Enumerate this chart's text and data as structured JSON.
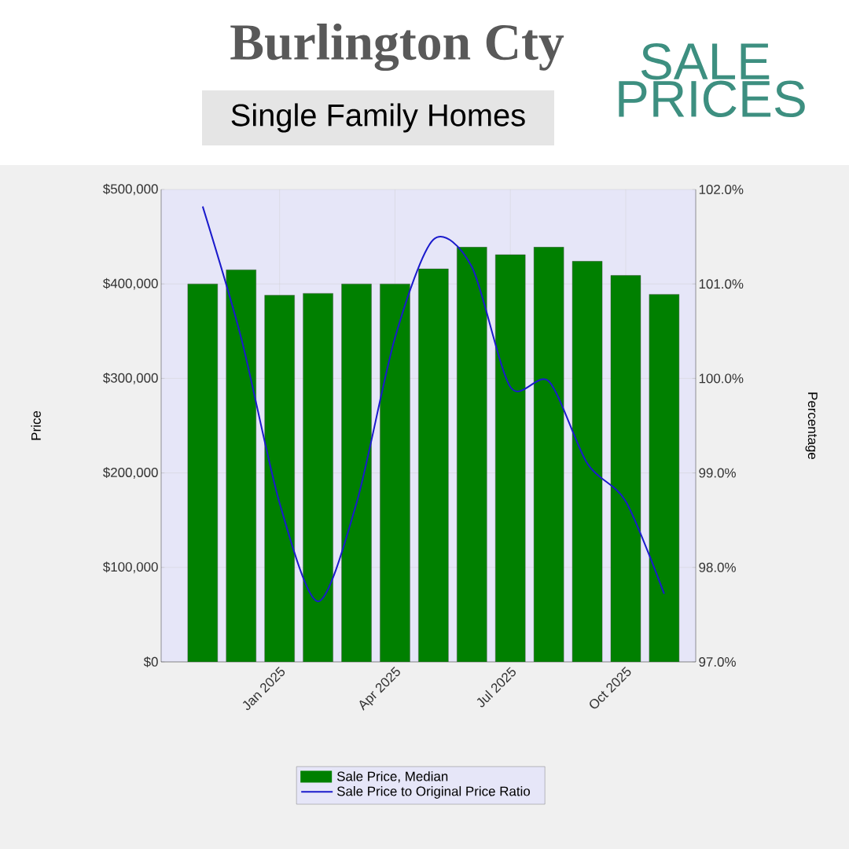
{
  "chart_data": {
    "type": "bar",
    "title": "Burlington Cty",
    "subtitle": "Single Family Homes",
    "annotations": [
      "SALE PRICES"
    ],
    "ylabel": "Price",
    "y2label": "Percentage",
    "categories": [
      null,
      null,
      "Jan 2025",
      null,
      null,
      "Apr 2025",
      null,
      null,
      "Jul 2025",
      null,
      null,
      "Oct 2025",
      null
    ],
    "series": [
      {
        "name": "Sale Price, Median",
        "color": "#008000",
        "values": [
          400000,
          415000,
          388000,
          390000,
          400000,
          400000,
          416000,
          439000,
          431000,
          439000,
          424000,
          409000,
          389000
        ]
      },
      {
        "name": "Sale Price to Original Price Ratio",
        "type": "line",
        "axis": "y2",
        "color": "#1a1acc",
        "values": [
          101.82,
          100.43,
          98.68,
          97.64,
          98.68,
          100.43,
          101.47,
          101.18,
          99.91,
          99.97,
          99.1,
          98.7,
          97.72
        ]
      }
    ],
    "ylim": [
      0,
      500000
    ],
    "yticks": [
      {
        "value": 0,
        "label": "$0"
      },
      {
        "value": 100000,
        "label": "$100,000"
      },
      {
        "value": 200000,
        "label": "$200,000"
      },
      {
        "value": 300000,
        "label": "$300,000"
      },
      {
        "value": 400000,
        "label": "$400,000"
      },
      {
        "value": 500000,
        "label": "$500,000"
      }
    ],
    "y2lim": [
      97,
      102
    ],
    "y2ticks": [
      {
        "value": 97,
        "label": "97.0%"
      },
      {
        "value": 98,
        "label": "98.0%"
      },
      {
        "value": 99,
        "label": "99.0%"
      },
      {
        "value": 100,
        "label": "100.0%"
      },
      {
        "value": 101,
        "label": "101.0%"
      },
      {
        "value": 102,
        "label": "102.0%"
      }
    ],
    "grid": true,
    "legend": "bottom"
  }
}
